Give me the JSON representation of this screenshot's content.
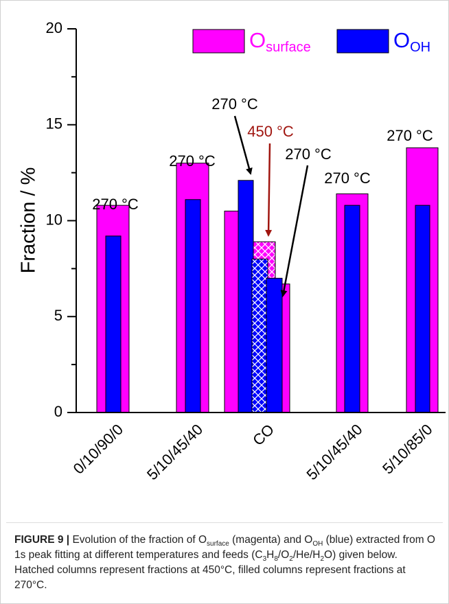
{
  "chart_data": {
    "type": "bar",
    "y_label": "Fraction / %",
    "categories": [
      "0/10/90/0",
      "5/10/45/40",
      null,
      "CO",
      null,
      "5/10/45/40",
      "5/10/85/0"
    ],
    "hatched": [
      false,
      false,
      false,
      true,
      false,
      false,
      false
    ],
    "series": [
      {
        "name": "O",
        "name_subscript": "surface",
        "color": "#ff00ff",
        "values": [
          10.8,
          13.0,
          10.5,
          8.9,
          6.7,
          11.4,
          13.8
        ]
      },
      {
        "name": "O",
        "name_subscript": "OH",
        "color": "#0000ff",
        "values": [
          9.2,
          11.1,
          12.1,
          8.0,
          7.0,
          10.8,
          10.8
        ]
      }
    ],
    "ylim": [
      0,
      20
    ],
    "yticks": [
      0,
      5,
      10,
      15,
      20
    ],
    "yminorticks": [
      2.5,
      7.5,
      12.5,
      17.5
    ],
    "annotations": [
      {
        "text": "270 °C",
        "color": "#000000"
      },
      {
        "text": "270 °C",
        "color": "#000000"
      },
      {
        "text": "270 °C",
        "color": "#000000"
      },
      {
        "text": "450 °C",
        "color": "#a0150f"
      },
      {
        "text": "270 °C",
        "color": "#000000"
      },
      {
        "text": "270 °C",
        "color": "#000000"
      },
      {
        "text": "270 °C",
        "color": "#000000"
      }
    ]
  },
  "caption": {
    "label": "FIGURE 9 |",
    "segments": [
      {
        "text": " Evolution of the fraction of O",
        "sub": false
      },
      {
        "text": "surface",
        "sub": true
      },
      {
        "text": " (magenta) and O",
        "sub": false
      },
      {
        "text": "OH",
        "sub": true
      },
      {
        "text": " (blue) extracted from O 1s peak fitting at different temperatures and feeds (C",
        "sub": false
      },
      {
        "text": "3",
        "sub": true
      },
      {
        "text": "H",
        "sub": false
      },
      {
        "text": "8",
        "sub": true
      },
      {
        "text": "/O",
        "sub": false
      },
      {
        "text": "2",
        "sub": true
      },
      {
        "text": "/He/H",
        "sub": false
      },
      {
        "text": "2",
        "sub": true
      },
      {
        "text": "O) given below. Hatched columns represent fractions at 450°C, filled columns represent fractions at 270°C.",
        "sub": false
      }
    ]
  }
}
